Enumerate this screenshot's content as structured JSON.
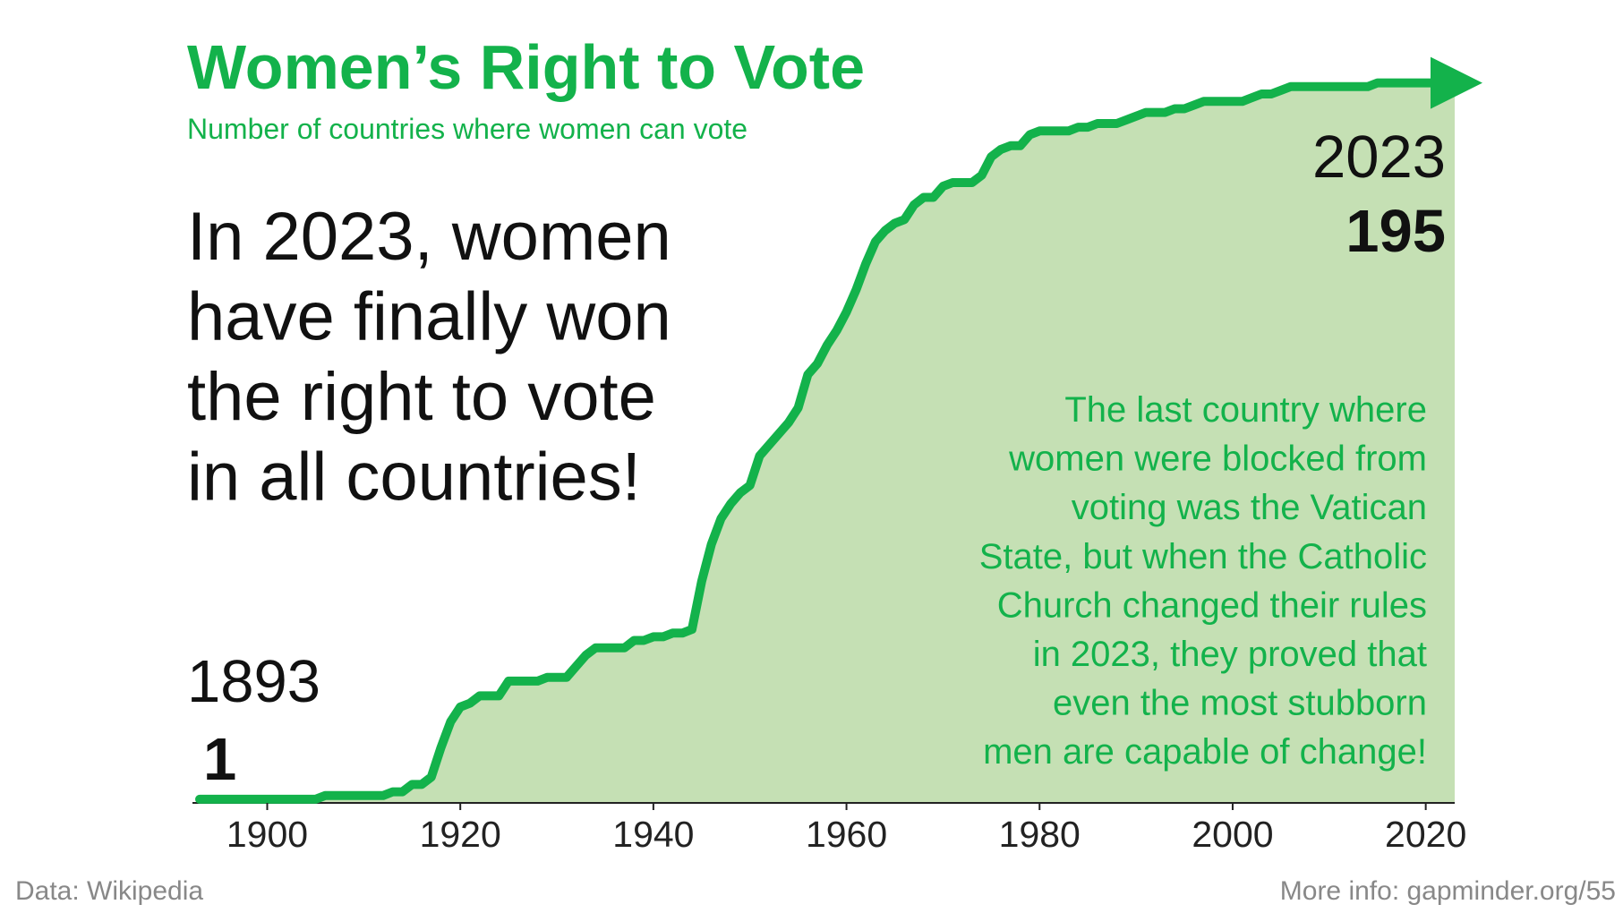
{
  "chart_data": {
    "type": "area",
    "title": "Women’s Right to Vote",
    "subtitle": "Number of countries where women can vote",
    "message": [
      "In 2023, women",
      "have finally won",
      "the right to vote",
      "in all countries!"
    ],
    "note": [
      "The last country where",
      "women were blocked from",
      "voting was the Vatican",
      "State, but when the Catholic",
      "Church changed their rules",
      "in 2023, they proved that",
      "even the most stubborn",
      "men are capable of change!"
    ],
    "source": "Data: Wikipedia",
    "more_info": "More info: gapminder.org/55",
    "x": [
      1893,
      1894,
      1895,
      1896,
      1897,
      1898,
      1899,
      1900,
      1901,
      1902,
      1903,
      1904,
      1905,
      1906,
      1907,
      1908,
      1909,
      1910,
      1911,
      1912,
      1913,
      1914,
      1915,
      1916,
      1917,
      1918,
      1919,
      1920,
      1921,
      1922,
      1923,
      1924,
      1925,
      1926,
      1927,
      1928,
      1929,
      1930,
      1931,
      1932,
      1933,
      1934,
      1935,
      1936,
      1937,
      1938,
      1939,
      1940,
      1941,
      1942,
      1943,
      1944,
      1945,
      1946,
      1947,
      1948,
      1949,
      1950,
      1951,
      1952,
      1953,
      1954,
      1955,
      1956,
      1957,
      1958,
      1959,
      1960,
      1961,
      1962,
      1963,
      1964,
      1965,
      1966,
      1967,
      1968,
      1969,
      1970,
      1971,
      1972,
      1973,
      1974,
      1975,
      1976,
      1977,
      1978,
      1979,
      1980,
      1981,
      1982,
      1983,
      1984,
      1985,
      1986,
      1987,
      1988,
      1989,
      1990,
      1991,
      1992,
      1993,
      1994,
      1995,
      1996,
      1997,
      1998,
      1999,
      2000,
      2001,
      2002,
      2003,
      2004,
      2005,
      2006,
      2007,
      2008,
      2009,
      2010,
      2011,
      2012,
      2013,
      2014,
      2015,
      2016,
      2017,
      2018,
      2019,
      2020,
      2021,
      2022,
      2023
    ],
    "values": [
      1,
      1,
      1,
      1,
      1,
      1,
      1,
      1,
      1,
      1,
      1,
      1,
      1,
      2,
      2,
      2,
      2,
      2,
      2,
      2,
      3,
      3,
      5,
      5,
      7,
      15,
      22,
      26,
      27,
      29,
      29,
      29,
      33,
      33,
      33,
      33,
      34,
      34,
      34,
      37,
      40,
      42,
      42,
      42,
      42,
      44,
      44,
      45,
      45,
      46,
      46,
      47,
      60,
      70,
      77,
      81,
      84,
      86,
      94,
      97,
      100,
      103,
      107,
      116,
      119,
      124,
      128,
      133,
      139,
      146,
      152,
      155,
      157,
      158,
      162,
      164,
      164,
      167,
      168,
      168,
      168,
      170,
      175,
      177,
      178,
      178,
      181,
      182,
      182,
      182,
      182,
      183,
      183,
      184,
      184,
      184,
      185,
      186,
      187,
      187,
      187,
      188,
      188,
      189,
      190,
      190,
      190,
      190,
      190,
      191,
      192,
      192,
      193,
      194,
      194,
      194,
      194,
      194,
      194,
      194,
      194,
      194,
      195,
      195,
      195,
      195,
      195,
      195,
      195,
      195,
      195
    ],
    "color": "#13b24b",
    "fill_color": "#c5e0b4",
    "xlim": [
      1893,
      2023
    ],
    "xticks": [
      1900,
      1920,
      1940,
      1960,
      1980,
      2000,
      2020
    ],
    "ylim": [
      0,
      200
    ]
  }
}
